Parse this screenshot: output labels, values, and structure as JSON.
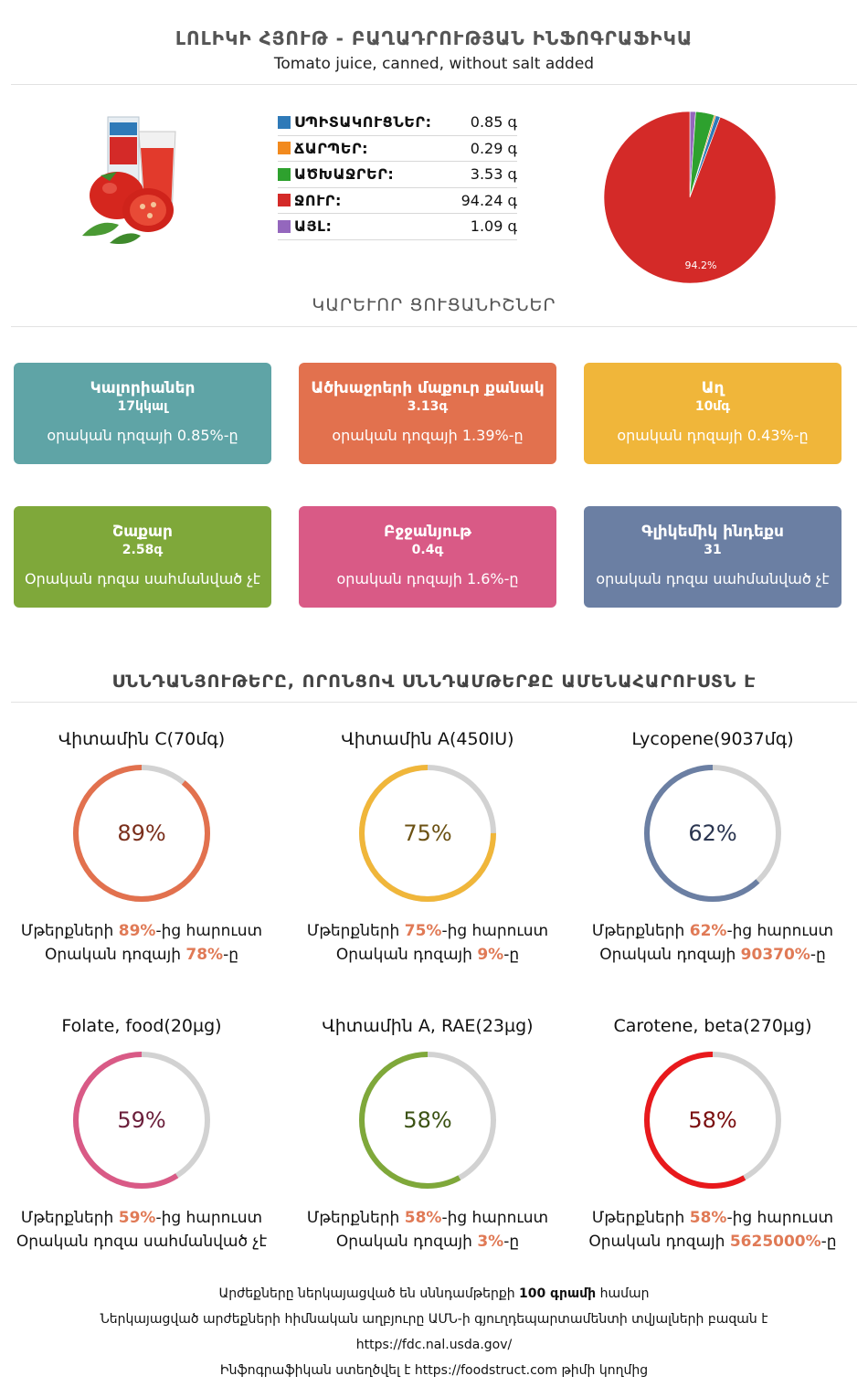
{
  "header": {
    "title": "ԼՈԼԻԿԻ ՀՅՈՒԹ - ԲԱՂԱԴՐՈՒԹՅԱՆ ԻՆՖՈԳՐԱՖԻԿԱ",
    "subtitle": "Tomato juice, canned, without salt added"
  },
  "composition": [
    {
      "label": "ՍՊԻՏԱԿՈՒՑՆԵՐ:",
      "value": "0.85 գ",
      "color": "#2f7ab8",
      "amount": 0.85
    },
    {
      "label": "ՃԱՐՊԵՐ:",
      "value": "0.29 գ",
      "color": "#f28a1e",
      "amount": 0.29
    },
    {
      "label": "ԱԾԽԱՋՐԵՐ:",
      "value": "3.53 գ",
      "color": "#2ea12e",
      "amount": 3.53
    },
    {
      "label": "ՋՈՒՐ:",
      "value": "94.24 գ",
      "color": "#d42a28",
      "amount": 94.24
    },
    {
      "label": "ԱՅԼ:",
      "value": "1.09 գ",
      "color": "#9467bd",
      "amount": 1.09
    }
  ],
  "pie_label": "94.2%",
  "key_heading": "ԿԱՐԵՒՈՐ ՑՈՒՑԱՆԻՇՆԵՐ",
  "cards": [
    {
      "title": "Կալորիաներ",
      "value": "17կկալ",
      "note": "օրական դոզայի 0.85%-ը",
      "color": "#5fa4a6"
    },
    {
      "title": "Ածխաջրերի մաքուր քանակ",
      "value": "3.13գ",
      "note": "օրական դոզայի 1.39%-ը",
      "color": "#e2714e"
    },
    {
      "title": "Աղ",
      "value": "10մգ",
      "note": "օրական դոզայի 0.43%-ը",
      "color": "#f0b63a"
    },
    {
      "title": "Շաքար",
      "value": "2.58գ",
      "note": "Օրական դոզա սահմանված չէ",
      "color": "#7fa83a"
    },
    {
      "title": "Բջջանյութ",
      "value": "0.4գ",
      "note": "օրական դոզայի 1.6%-ը",
      "color": "#d95a86"
    },
    {
      "title": "Գլիկեմիկ ինդեքս",
      "value": "31",
      "note": "օրական դոզա սահմանված չէ",
      "color": "#6b7fa3"
    }
  ],
  "nutrients_heading": "ՍՆՆԴԱՆՅՈՒԹԵՐԸ, ՈՐՈՆՑՈՎ ՍՆՆԴԱՄԹԵՐՔԸ ԱՄԵՆԱՀԱՐՈՒՍՏՆ Է",
  "nutrients": [
    {
      "name": "Վիտամին C(70մգ)",
      "pct": 89,
      "pct_text": "89%",
      "color": "#e2714e",
      "text_color": "#7a2f1c",
      "line1_pre": "Մթերքների ",
      "line1_hl": "89%",
      "line1_post": "-ից հարուստ",
      "line2_pre": "Օրական դոզայի ",
      "line2_hl": "78%",
      "line2_post": "-ը"
    },
    {
      "name": "Վիտամին A(450IU)",
      "pct": 75,
      "pct_text": "75%",
      "color": "#f0b63a",
      "text_color": "#6b5113",
      "line1_pre": "Մթերքների ",
      "line1_hl": "75%",
      "line1_post": "-ից հարուստ",
      "line2_pre": "Օրական դոզայի ",
      "line2_hl": "9%",
      "line2_post": "-ը"
    },
    {
      "name": "Lycopene(9037մգ)",
      "pct": 62,
      "pct_text": "62%",
      "color": "#6b7fa3",
      "text_color": "#2a3550",
      "line1_pre": "Մթերքների ",
      "line1_hl": "62%",
      "line1_post": "-ից հարուստ",
      "line2_pre": "Օրական դոզայի ",
      "line2_hl": "90370%",
      "line2_post": "-ը"
    },
    {
      "name": "Folate, food(20µg)",
      "pct": 59,
      "pct_text": "59%",
      "color": "#d95a86",
      "text_color": "#6b1f3b",
      "line1_pre": "Մթերքների ",
      "line1_hl": "59%",
      "line1_post": "-ից հարուստ",
      "line2_pre": "Օրական դոզա սահմանված չէ",
      "line2_hl": "",
      "line2_post": ""
    },
    {
      "name": "Վիտամին A, RAE(23µg)",
      "pct": 58,
      "pct_text": "58%",
      "color": "#7fa83a",
      "text_color": "#3b5214",
      "line1_pre": "Մթերքների ",
      "line1_hl": "58%",
      "line1_post": "-ից հարուստ",
      "line2_pre": "Օրական դոզայի ",
      "line2_hl": "3%",
      "line2_post": "-ը"
    },
    {
      "name": "Carotene, beta(270µg)",
      "pct": 58,
      "pct_text": "58%",
      "color": "#e8191c",
      "text_color": "#7a0d0e",
      "line1_pre": "Մթերքների ",
      "line1_hl": "58%",
      "line1_post": "-ից հարուստ",
      "line2_pre": "Օրական դոզայի ",
      "line2_hl": "5625000%",
      "line2_post": "-ը"
    }
  ],
  "footer": {
    "line1_pre": "Արժեքները ներկայացված են սննդամթերքի ",
    "line1_bold": "100 գրամի",
    "line1_post": " համար",
    "line2": "Ներկայացված արժեքների հիմնական աղբյուրը ԱՄՆ-ի գյուղդեպարտամենտի տվյալների բազան է",
    "line3": "https://fdc.nal.usda.gov/",
    "line4": "Ինֆոգրաֆիկան ստեղծվել է https://foodstruct.com թիմի կողմից"
  }
}
